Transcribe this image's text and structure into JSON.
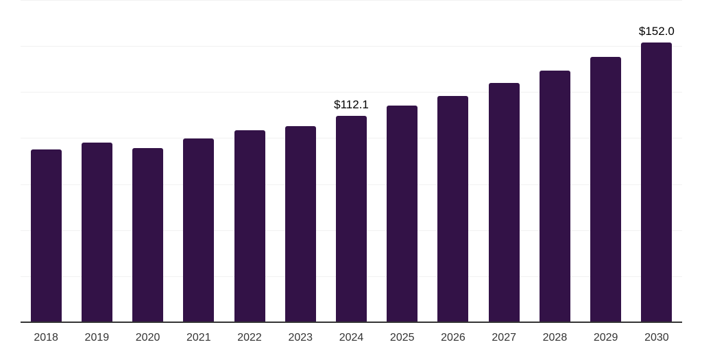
{
  "chart_data": {
    "type": "bar",
    "title": "",
    "xlabel": "",
    "ylabel": "",
    "categories": [
      "2018",
      "2019",
      "2020",
      "2021",
      "2022",
      "2023",
      "2024",
      "2025",
      "2026",
      "2027",
      "2028",
      "2029",
      "2030"
    ],
    "values": [
      94.0,
      97.7,
      94.7,
      99.8,
      104.1,
      106.5,
      112.1,
      117.6,
      122.9,
      130.0,
      136.6,
      144.2,
      152.0
    ],
    "point_labels": {
      "2024": "$112.1",
      "2030": "$152.0"
    },
    "ylim": [
      0,
      175
    ],
    "gridline_step": 25,
    "grid": "horizontal",
    "legend_position": "none",
    "colors": {
      "bar": "#331247",
      "axis_line": "#333333",
      "gridline": "#f1f1f1",
      "tick_label": "#333333",
      "data_label": "#000000",
      "background": "#ffffff"
    }
  }
}
